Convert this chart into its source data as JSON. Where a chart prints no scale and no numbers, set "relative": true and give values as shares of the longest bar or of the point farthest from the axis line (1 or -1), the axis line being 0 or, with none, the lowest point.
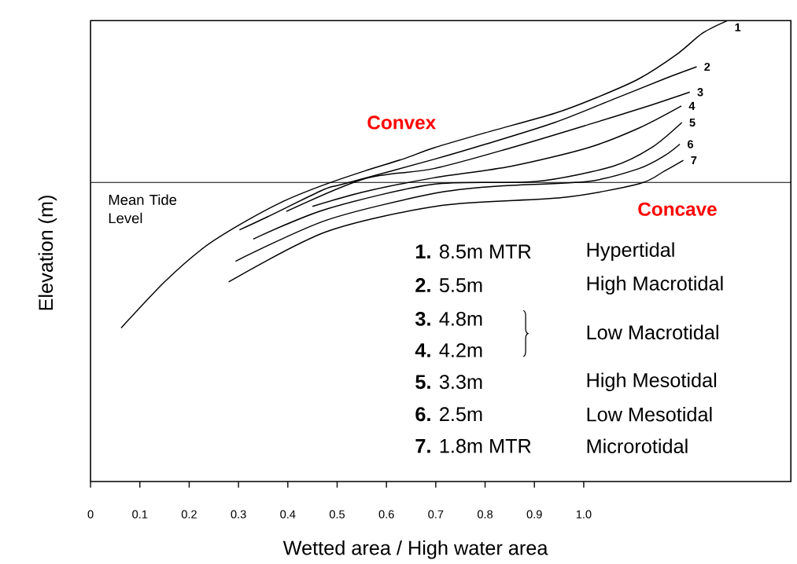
{
  "chart_data": {
    "type": "line",
    "relative": true,
    "xlabel": "Wetted area / High water area",
    "ylabel": "Elevation (m)",
    "xlim": [
      0,
      1.42
    ],
    "xticks": [
      0,
      0.1,
      0.2,
      0.3,
      0.4,
      0.5,
      0.6,
      0.7,
      0.8,
      0.9,
      {
        "value": 1.0,
        "label": "1.0"
      }
    ],
    "marker": "none",
    "line_style": "solid",
    "series": [
      {
        "name": "1",
        "color": "#000000",
        "x": [
          0.062,
          0.151,
          0.229,
          0.302,
          0.389,
          0.474,
          0.556,
          0.634,
          0.696,
          0.801,
          0.941,
          1.028,
          1.112,
          1.19,
          1.241,
          1.291
        ],
        "values": [
          0.333,
          0.434,
          0.507,
          0.557,
          0.607,
          0.644,
          0.674,
          0.7,
          0.724,
          0.757,
          0.799,
          0.834,
          0.874,
          0.928,
          0.973,
          1.0
        ]
      },
      {
        "name": "2",
        "color": "#000000",
        "x": [
          0.302,
          0.358,
          0.474,
          0.514,
          0.696,
          0.801,
          0.941,
          1.059,
          1.164,
          1.229
        ],
        "values": [
          0.546,
          0.574,
          0.634,
          0.646,
          0.699,
          0.732,
          0.779,
          0.829,
          0.874,
          0.9
        ]
      },
      {
        "name": "3",
        "color": "#000000",
        "x": [
          0.397,
          0.556,
          0.696,
          0.852,
          1.008,
          1.137,
          1.215
        ],
        "values": [
          0.586,
          0.657,
          0.679,
          0.724,
          0.774,
          0.817,
          0.845
        ]
      },
      {
        "name": "4",
        "color": "#000000",
        "x": [
          0.45,
          0.556,
          0.696,
          0.852,
          1.008,
          1.112,
          1.198
        ],
        "values": [
          0.597,
          0.629,
          0.659,
          0.684,
          0.724,
          0.767,
          0.815
        ]
      },
      {
        "name": "5",
        "color": "#000000",
        "x": [
          0.33,
          0.478,
          0.696,
          0.903,
          1.059,
          1.137,
          1.199
        ],
        "values": [
          0.526,
          0.591,
          0.645,
          0.651,
          0.684,
          0.724,
          0.779
        ]
      },
      {
        "name": "6",
        "color": "#000000",
        "x": [
          0.294,
          0.478,
          0.696,
          0.826,
          1.008,
          1.112,
          1.164,
          1.195
        ],
        "values": [
          0.478,
          0.567,
          0.625,
          0.641,
          0.651,
          0.679,
          0.707,
          0.732
        ]
      },
      {
        "name": "7",
        "color": "#000000",
        "x": [
          0.28,
          0.478,
          0.712,
          0.956,
          1.112,
          1.164,
          1.202
        ],
        "values": [
          0.433,
          0.542,
          0.599,
          0.616,
          0.646,
          0.674,
          0.697
        ]
      }
    ],
    "ref_lines": [
      {
        "axis": "y",
        "value": 0.649,
        "label": "Mean Tide Level",
        "color": "#000000"
      }
    ],
    "annotations": [
      "Convex",
      "Concave",
      "**1.** 8.5m MTR",
      "Hypertidal",
      "**2.** 5.5m",
      "High Macrotidal",
      "**3.** 4.8m",
      "**4.** 4.2m",
      "Low Macrotidal",
      "**5.** 3.3m",
      "High Mesotidal",
      "**6.** 2.5m",
      "Low Mesotidal",
      "**7.** 1.8m MTR",
      "Microrotidal"
    ]
  }
}
